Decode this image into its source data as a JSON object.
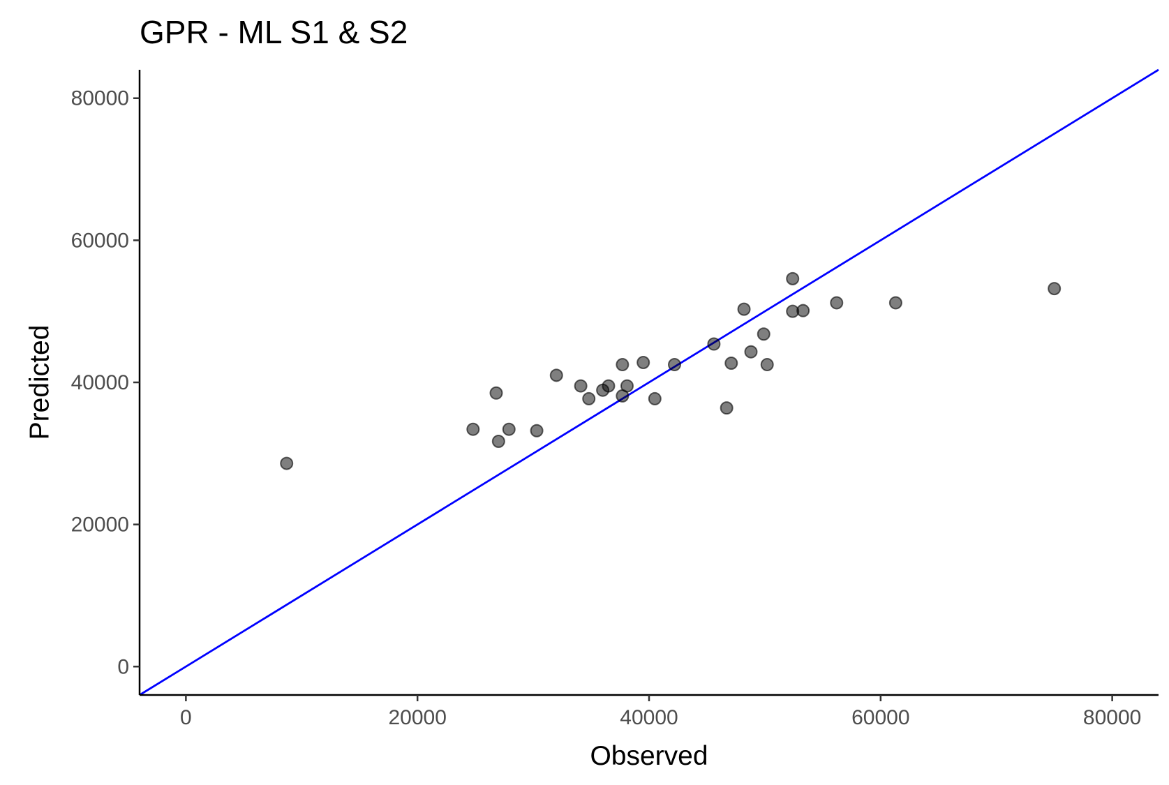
{
  "chart_data": {
    "type": "scatter",
    "title": "GPR - ML S1 & S2",
    "xlabel": "Observed",
    "ylabel": "Predicted",
    "xlim": [
      -4000,
      84000
    ],
    "ylim": [
      -4000,
      84000
    ],
    "x_ticks": [
      0,
      20000,
      40000,
      60000,
      80000
    ],
    "y_ticks": [
      0,
      20000,
      40000,
      60000,
      80000
    ],
    "x_tick_labels": [
      "0",
      "20000",
      "40000",
      "60000",
      "80000"
    ],
    "y_tick_labels": [
      "0",
      "20000",
      "40000",
      "60000",
      "80000"
    ],
    "grid": false,
    "reference_line": {
      "slope": 1,
      "intercept": 0,
      "color": "#0000ff"
    },
    "point_color": "#000000",
    "points": [
      [
        8700,
        28600
      ],
      [
        24800,
        33400
      ],
      [
        26800,
        38500
      ],
      [
        27000,
        31700
      ],
      [
        27900,
        33400
      ],
      [
        30300,
        33200
      ],
      [
        32000,
        41000
      ],
      [
        34100,
        39500
      ],
      [
        34800,
        37700
      ],
      [
        36000,
        38900
      ],
      [
        36500,
        39500
      ],
      [
        37700,
        42500
      ],
      [
        37700,
        38100
      ],
      [
        38100,
        39500
      ],
      [
        39500,
        42800
      ],
      [
        40500,
        37700
      ],
      [
        42200,
        42500
      ],
      [
        45600,
        45400
      ],
      [
        46700,
        36400
      ],
      [
        47100,
        42700
      ],
      [
        48200,
        50300
      ],
      [
        48800,
        44300
      ],
      [
        49900,
        46800
      ],
      [
        50200,
        42500
      ],
      [
        52400,
        54600
      ],
      [
        52400,
        50000
      ],
      [
        53300,
        50100
      ],
      [
        56200,
        51200
      ],
      [
        61300,
        51200
      ],
      [
        75000,
        53200
      ]
    ]
  }
}
